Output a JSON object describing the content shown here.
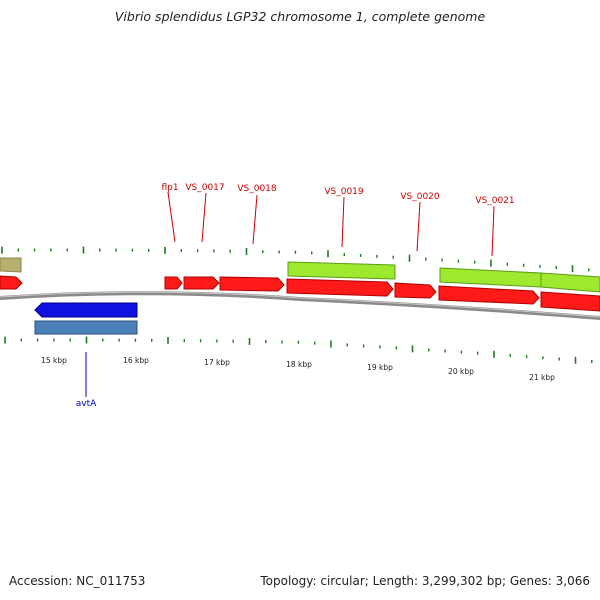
{
  "title": "Vibrio splendidus LGP32 chromosome 1, complete genome",
  "footer": {
    "accession": "Accession: NC_011753",
    "topology": "Topology: circular; Length: 3,299,302 bp; Genes: 3,066"
  },
  "colors": {
    "backbone": "#8a8a8a",
    "tick": "#1e7b1e",
    "forward_gene": "#ff1a1a",
    "forward_label": "#cc0000",
    "reverse_gene": "#1010e0",
    "reverse_label": "#0000cc",
    "other_feature": "#9ee830",
    "olive_feature": "#b8b070",
    "reverse_other": "#4a7fb8"
  },
  "scale": {
    "labels": [
      "15 kbp",
      "16 kbp",
      "17 kbp",
      "18 kbp",
      "19 kbp",
      "20 kbp",
      "21 kbp"
    ]
  },
  "gene_labels": [
    {
      "id": "flp1",
      "text": "flp1"
    },
    {
      "id": "vs-0017",
      "text": "VS_0017"
    },
    {
      "id": "vs-0018",
      "text": "VS_0018"
    },
    {
      "id": "vs-0019",
      "text": "VS_0019"
    },
    {
      "id": "vs-0020",
      "text": "VS_0020"
    },
    {
      "id": "vs-0021",
      "text": "VS_0021"
    },
    {
      "id": "avta",
      "text": "avtA"
    }
  ]
}
